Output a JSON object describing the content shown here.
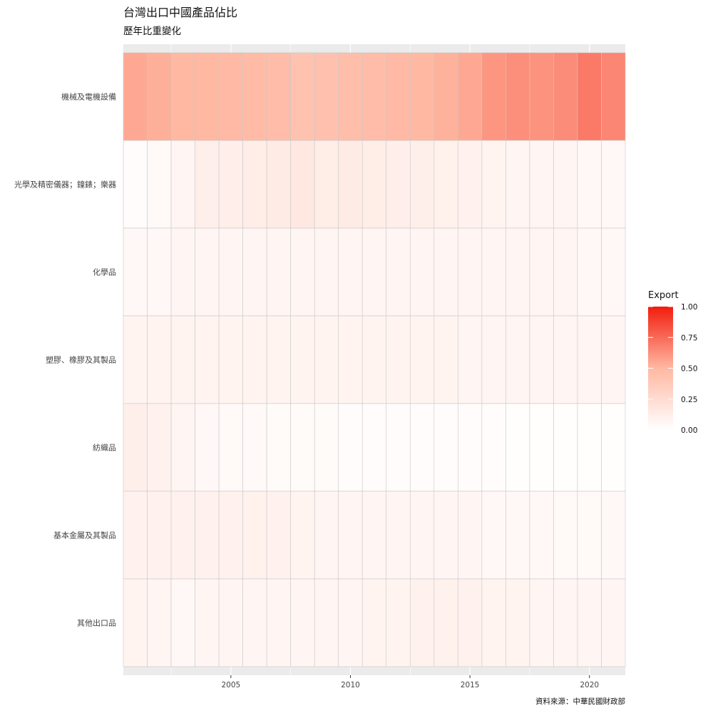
{
  "chart_data": {
    "type": "heatmap",
    "title": "台灣出口中國產品佔比",
    "subtitle": "歷年比重變化",
    "caption": "資料來源：中華民國財政部",
    "xlabel": "",
    "ylabel": "",
    "x": [
      2001,
      2002,
      2003,
      2004,
      2005,
      2006,
      2007,
      2008,
      2009,
      2010,
      2011,
      2012,
      2013,
      2014,
      2015,
      2016,
      2017,
      2018,
      2019,
      2020,
      2021
    ],
    "xlim": [
      2000.5,
      2021.5
    ],
    "x_ticks": [
      "2005",
      "2010",
      "2015",
      "2020"
    ],
    "categories": [
      "機械及電機設備",
      "光學及精密儀器；鐘錶；樂器",
      "化學品",
      "塑膠、橡膠及其製品",
      "紡織品",
      "基本金屬及其製品",
      "其他出口品"
    ],
    "series": [
      {
        "name": "機械及電機設備",
        "values": [
          0.55,
          0.53,
          0.5,
          0.5,
          0.49,
          0.48,
          0.47,
          0.43,
          0.44,
          0.46,
          0.47,
          0.49,
          0.5,
          0.52,
          0.55,
          0.61,
          0.63,
          0.62,
          0.64,
          0.7,
          0.66
        ]
      },
      {
        "name": "光學及精密儀器；鐘錶；樂器",
        "values": [
          0.02,
          0.04,
          0.07,
          0.11,
          0.12,
          0.13,
          0.14,
          0.16,
          0.13,
          0.14,
          0.13,
          0.12,
          0.11,
          0.1,
          0.09,
          0.08,
          0.07,
          0.07,
          0.06,
          0.05,
          0.05
        ]
      },
      {
        "name": "化學品",
        "values": [
          0.05,
          0.05,
          0.06,
          0.06,
          0.06,
          0.06,
          0.07,
          0.07,
          0.07,
          0.07,
          0.07,
          0.07,
          0.07,
          0.07,
          0.07,
          0.06,
          0.06,
          0.06,
          0.06,
          0.05,
          0.05
        ]
      },
      {
        "name": "塑膠、橡膠及其製品",
        "values": [
          0.08,
          0.08,
          0.08,
          0.08,
          0.08,
          0.08,
          0.08,
          0.08,
          0.08,
          0.08,
          0.08,
          0.08,
          0.08,
          0.08,
          0.07,
          0.07,
          0.07,
          0.07,
          0.06,
          0.06,
          0.06
        ]
      },
      {
        "name": "紡織品",
        "values": [
          0.11,
          0.09,
          0.07,
          0.05,
          0.04,
          0.04,
          0.03,
          0.03,
          0.03,
          0.02,
          0.02,
          0.02,
          0.02,
          0.02,
          0.02,
          0.02,
          0.01,
          0.01,
          0.01,
          0.01,
          0.01
        ]
      },
      {
        "name": "基本金屬及其製品",
        "values": [
          0.09,
          0.09,
          0.09,
          0.09,
          0.09,
          0.1,
          0.09,
          0.08,
          0.07,
          0.07,
          0.07,
          0.07,
          0.07,
          0.06,
          0.06,
          0.05,
          0.05,
          0.05,
          0.04,
          0.04,
          0.05
        ]
      },
      {
        "name": "其他出口品",
        "values": [
          0.08,
          0.07,
          0.05,
          0.06,
          0.06,
          0.06,
          0.06,
          0.06,
          0.06,
          0.07,
          0.08,
          0.08,
          0.09,
          0.1,
          0.09,
          0.08,
          0.08,
          0.07,
          0.06,
          0.06,
          0.06
        ]
      }
    ],
    "legend": {
      "title": "Export",
      "position": "right",
      "ticks": [
        "1.00",
        "0.75",
        "0.50",
        "0.25",
        "0.00"
      ],
      "low_color": "#ffffff",
      "high_color": "#f21c0e"
    },
    "colors": {
      "panel_background": "#ebebeb",
      "grid_line": "#ffffff",
      "tile_outline": "#c9c9c9"
    }
  }
}
